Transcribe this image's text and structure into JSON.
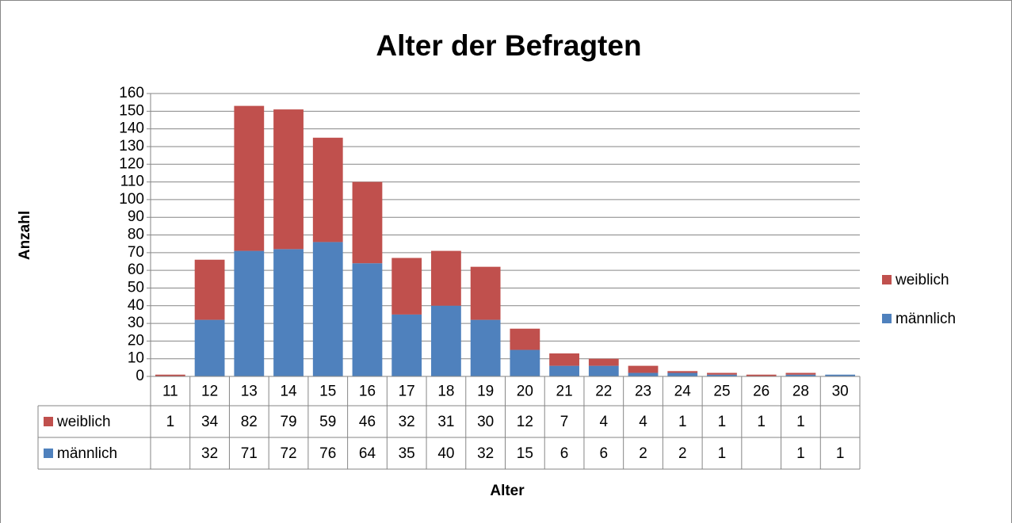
{
  "chart_data": {
    "type": "bar",
    "stacked": true,
    "title": "Alter der Befragten",
    "x_label": "Alter",
    "y_label": "Anzahl",
    "categories": [
      "11",
      "12",
      "13",
      "14",
      "15",
      "16",
      "17",
      "18",
      "19",
      "20",
      "21",
      "22",
      "23",
      "24",
      "25",
      "26",
      "28",
      "30"
    ],
    "series": [
      {
        "name": "weiblich",
        "color": "#c0504d",
        "values": [
          1,
          34,
          82,
          79,
          59,
          46,
          32,
          31,
          30,
          12,
          7,
          4,
          4,
          1,
          1,
          1,
          1,
          null
        ]
      },
      {
        "name": "männlich",
        "color": "#4f81bd",
        "values": [
          null,
          32,
          71,
          72,
          76,
          64,
          35,
          40,
          32,
          15,
          6,
          6,
          2,
          2,
          1,
          null,
          1,
          1
        ]
      }
    ],
    "ylim": [
      0,
      160
    ],
    "yticks": [
      0,
      10,
      20,
      30,
      40,
      50,
      60,
      70,
      80,
      90,
      100,
      110,
      120,
      130,
      140,
      150,
      160
    ],
    "grid": true,
    "legend": "right",
    "data_table": true
  }
}
